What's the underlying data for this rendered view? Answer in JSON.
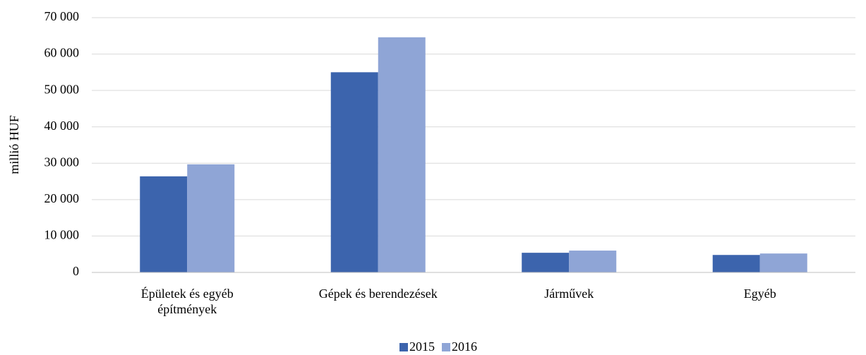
{
  "chart_data": {
    "type": "bar",
    "y_label": "millió HUF",
    "categories": [
      "Épületek és egyéb építmények",
      "Gépek és berendezések",
      "Járművek",
      "Egyéb"
    ],
    "series": [
      {
        "name": "2015",
        "color": "#3c64ad",
        "values": [
          26400,
          55000,
          5400,
          4800
        ]
      },
      {
        "name": "2016",
        "color": "#8fa5d6",
        "values": [
          29700,
          64600,
          6000,
          5200
        ]
      }
    ],
    "ylim": [
      0,
      70000
    ],
    "yticks": [
      0,
      {
        "value": 10000,
        "label": "10 000"
      },
      {
        "value": 20000,
        "label": "20 000"
      },
      {
        "value": 30000,
        "label": "30 000"
      },
      {
        "value": 40000,
        "label": "40 000"
      },
      {
        "value": 50000,
        "label": "50 000"
      },
      {
        "value": 60000,
        "label": "60 000"
      },
      {
        "value": 70000,
        "label": "70 000"
      }
    ],
    "grid": true,
    "legend": "bottom"
  }
}
